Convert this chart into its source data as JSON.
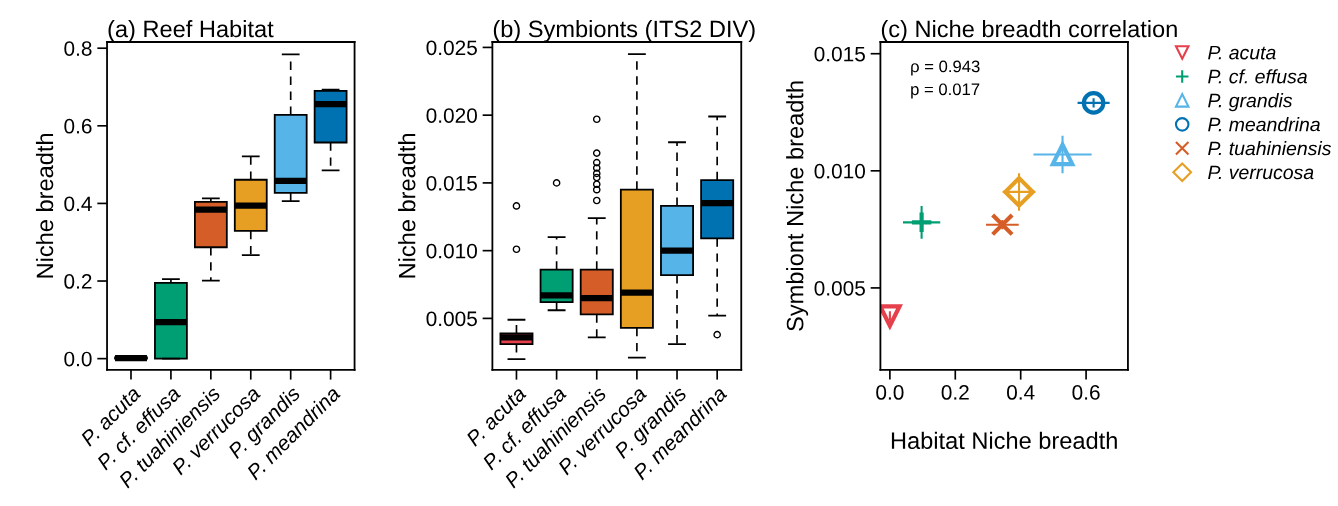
{
  "chart_data": [
    {
      "type": "box",
      "title": "(a) Reef Habitat",
      "ylabel": "Niche breadth",
      "categories": [
        "P. acuta",
        "P. cf. effusa",
        "P. tuahiniensis",
        "P. verrucosa",
        "P. grandis",
        "P. meandrina"
      ],
      "colors": [
        "#e5404b",
        "#009e73",
        "#d55e28",
        "#e69f22",
        "#56b4e9",
        "#0072b2"
      ],
      "boxes": [
        {
          "low": 0,
          "q1": 0,
          "median": 0.001,
          "q3": 0.003,
          "high": 0.005
        },
        {
          "low": 0,
          "q1": 0,
          "median": 0.094,
          "q3": 0.195,
          "high": 0.205
        },
        {
          "low": 0.201,
          "q1": 0.287,
          "median": 0.384,
          "q3": 0.404,
          "high": 0.413
        },
        {
          "low": 0.267,
          "q1": 0.329,
          "median": 0.394,
          "q3": 0.461,
          "high": 0.521
        },
        {
          "low": 0.406,
          "q1": 0.427,
          "median": 0.458,
          "q3": 0.628,
          "high": 0.784
        },
        {
          "low": 0.485,
          "q1": 0.557,
          "median": 0.656,
          "q3": 0.69,
          "high": 0.693
        }
      ],
      "ylim": [
        -0.029,
        0.816
      ],
      "yticks": [
        {
          "value": 0,
          "label": "0.0"
        },
        {
          "value": 0.2,
          "label": "0.2"
        },
        {
          "value": 0.4,
          "label": "0.4"
        },
        {
          "value": 0.6,
          "label": "0.6"
        },
        {
          "value": 0.8,
          "label": "0.8"
        }
      ],
      "grid": false
    },
    {
      "type": "box",
      "title": "(b) Symbionts (ITS2 DIV)",
      "ylabel": "Niche breadth",
      "categories": [
        "P. acuta",
        "P. cf. effusa",
        "P. tuahiniensis",
        "P. verrucosa",
        "P. grandis",
        "P. meandrina"
      ],
      "colors": [
        "#e5404b",
        "#009e73",
        "#d55e28",
        "#e69f22",
        "#56b4e9",
        "#0072b2"
      ],
      "boxes": [
        {
          "low": 0.002,
          "q1": 0.0031,
          "median": 0.0036,
          "q3": 0.0039,
          "high": 0.0049,
          "outliers": [
            0.0101,
            0.0133
          ]
        },
        {
          "low": 0.0056,
          "q1": 0.0062,
          "median": 0.0067,
          "q3": 0.0086,
          "high": 0.011,
          "outliers": [
            0.015
          ]
        },
        {
          "low": 0.0036,
          "q1": 0.0053,
          "median": 0.0065,
          "q3": 0.0086,
          "high": 0.0124,
          "outliers": [
            0.0137,
            0.0145,
            0.0149,
            0.0154,
            0.0157,
            0.0161,
            0.0165,
            0.0172,
            0.0197
          ]
        },
        {
          "low": 0.0021,
          "q1": 0.0043,
          "median": 0.0069,
          "q3": 0.0145,
          "high": 0.0245
        },
        {
          "low": 0.0031,
          "q1": 0.0082,
          "median": 0.01,
          "q3": 0.0133,
          "high": 0.018
        },
        {
          "low": 0.0052,
          "q1": 0.0109,
          "median": 0.0135,
          "q3": 0.0152,
          "high": 0.0199,
          "outliers": [
            0.0038
          ]
        }
      ],
      "ylim": [
        0.0012,
        0.0254
      ],
      "yticks": [
        0.005,
        {
          "value": 0.01,
          "label": "0.010"
        },
        0.015,
        {
          "value": 0.02,
          "label": "0.020"
        },
        0.025
      ],
      "grid": false
    },
    {
      "type": "scatter",
      "title": "(c) Niche breadth correlation",
      "xlabel": "Habitat Niche breadth",
      "ylabel": "Symbiont Niche breadth",
      "series": [
        {
          "name": "P. acuta",
          "color": "#e5404b",
          "marker": "triangle-down",
          "x": [
            0.0
          ],
          "values": [
            0.0038
          ],
          "errors": [
            0.0002
          ],
          "xerrors": [
            0.003
          ]
        },
        {
          "name": "P. cf. effusa",
          "color": "#009e73",
          "marker": "plus",
          "x": [
            0.097
          ],
          "values": [
            0.0078
          ],
          "errors": [
            0.0007
          ],
          "xerrors": [
            0.057
          ]
        },
        {
          "name": "P. grandis",
          "color": "#56b4e9",
          "marker": "triangle",
          "x": [
            0.528
          ],
          "values": [
            0.0107
          ],
          "errors": [
            0.0008
          ],
          "xerrors": [
            0.089
          ]
        },
        {
          "name": "P. meandrina",
          "color": "#0072b2",
          "marker": "circle",
          "x": [
            0.623
          ],
          "values": [
            0.0129
          ],
          "errors": [
            0.0002
          ],
          "xerrors": [
            0.049
          ]
        },
        {
          "name": "P. tuahiniensis",
          "color": "#d55e28",
          "marker": "x",
          "x": [
            0.344
          ],
          "values": [
            0.0077
          ],
          "errors": [
            0.0002
          ],
          "xerrors": [
            0.05
          ]
        },
        {
          "name": "P. verrucosa",
          "color": "#e69f22",
          "marker": "diamond",
          "x": [
            0.395
          ],
          "values": [
            0.0091
          ],
          "errors": [
            0.0008
          ],
          "xerrors": [
            0.05
          ]
        }
      ],
      "annotations": [
        "ρ = 0.943",
        "p = 0.017"
      ],
      "xlim": [
        -0.029,
        0.728
      ],
      "xticks": [
        {
          "value": 0,
          "label": "0.0"
        },
        0.2,
        0.4,
        0.6
      ],
      "ylim": [
        0.0015,
        0.0155
      ],
      "yticks": [
        0.005,
        {
          "value": 0.01,
          "label": "0.010"
        },
        0.015
      ],
      "legend": "right",
      "grid": false
    }
  ]
}
